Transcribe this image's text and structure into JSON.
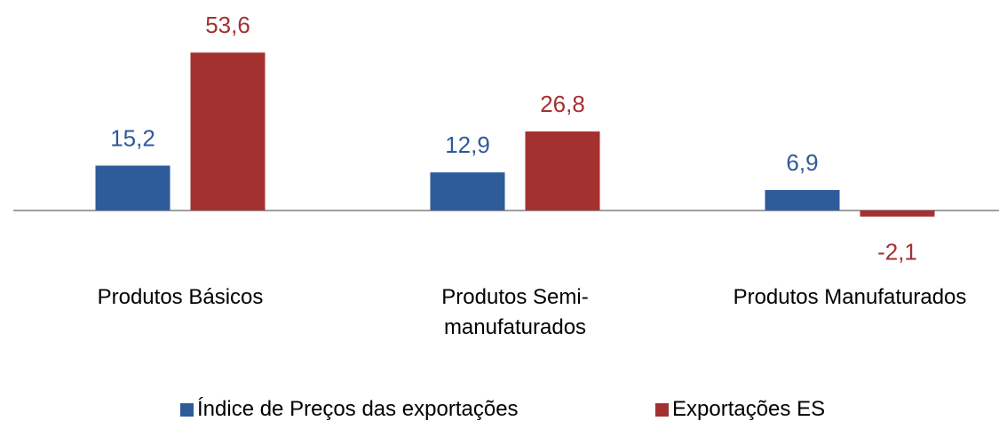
{
  "chart_data": {
    "type": "bar",
    "categories": [
      "Produtos Básicos",
      "Produtos Semi-manufaturados",
      "Produtos Manufaturados"
    ],
    "series": [
      {
        "name": "Índice de Preços das exportações",
        "color": "#2e5b9a",
        "values": [
          15.2,
          12.9,
          6.9
        ],
        "value_labels": [
          "15,2",
          "12,9",
          "6,9"
        ]
      },
      {
        "name": "Exportações ES",
        "color": "#a33130",
        "values": [
          53.6,
          26.8,
          -2.1
        ],
        "value_labels": [
          "53,6",
          "26,8",
          "-2,1"
        ]
      }
    ],
    "ylim": [
      -10,
      60
    ]
  }
}
